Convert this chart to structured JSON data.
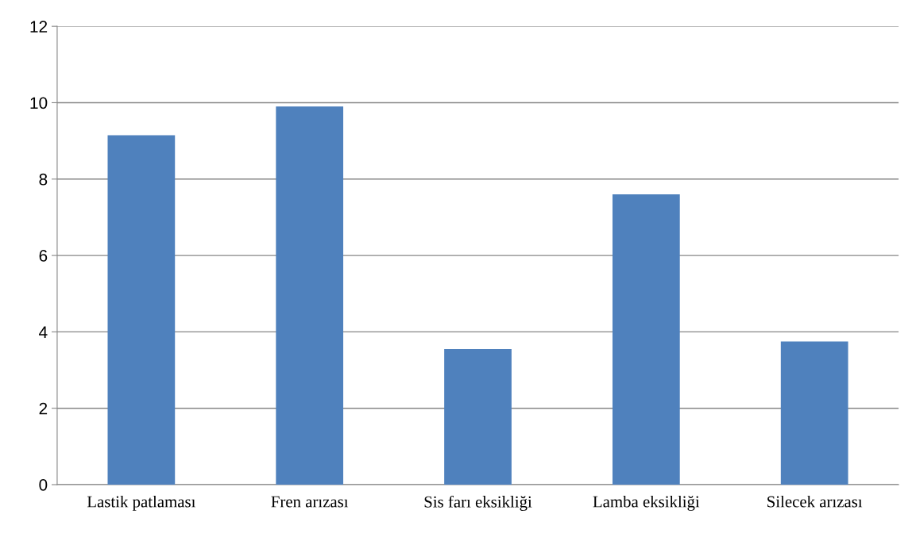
{
  "chart_data": {
    "type": "bar",
    "categories": [
      "Lastik patlaması",
      "Fren arızası",
      "Sis farı eksikliği",
      "Lamba eksikliği",
      "Silecek arızası"
    ],
    "values": [
      9.15,
      9.9,
      3.55,
      7.6,
      3.75
    ],
    "color": "#4f81bd",
    "ylim": [
      0,
      12
    ],
    "yticks": [
      0,
      2,
      4,
      6,
      8,
      10,
      12
    ],
    "grid": "y"
  }
}
